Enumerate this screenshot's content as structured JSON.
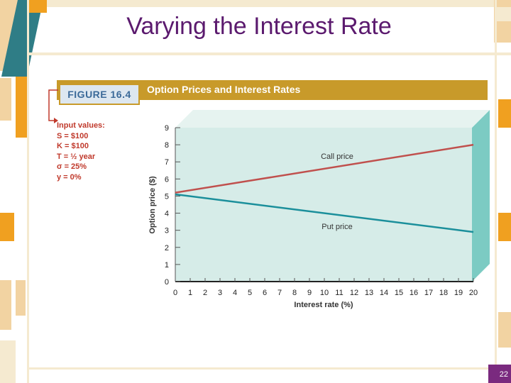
{
  "slide": {
    "title": "Varying the Interest Rate",
    "page_number": "22"
  },
  "figure": {
    "label": "FIGURE 16.4",
    "title": "Option Prices and Interest Rates"
  },
  "inputs": {
    "heading": "Input values:",
    "lines": [
      "S = $100",
      "K = $100",
      "T = ½ year",
      "σ = 25%",
      "y = 0%"
    ]
  },
  "colors": {
    "accent_gold": "#c89a2a",
    "title_purple": "#5b1a6e",
    "call_line": "#c0504d",
    "put_line": "#1b8f9b",
    "plot_bg": "#d6ece8",
    "plot_side": "#7ccbc3"
  },
  "chart_data": {
    "type": "line",
    "title": "",
    "xlabel": "Interest rate (%)",
    "ylabel": "Option price ($)",
    "xlim": [
      0,
      20
    ],
    "ylim": [
      0,
      9
    ],
    "x_ticks": [
      0,
      1,
      2,
      3,
      4,
      5,
      6,
      7,
      8,
      9,
      10,
      11,
      12,
      13,
      14,
      15,
      16,
      17,
      18,
      19,
      20
    ],
    "y_ticks": [
      0,
      1,
      2,
      3,
      4,
      5,
      6,
      7,
      8,
      9
    ],
    "grid": false,
    "series": [
      {
        "name": "Call price",
        "x": [
          0,
          20
        ],
        "y": [
          5.2,
          8.0
        ]
      },
      {
        "name": "Put price",
        "x": [
          0,
          20
        ],
        "y": [
          5.1,
          2.9
        ]
      }
    ]
  }
}
